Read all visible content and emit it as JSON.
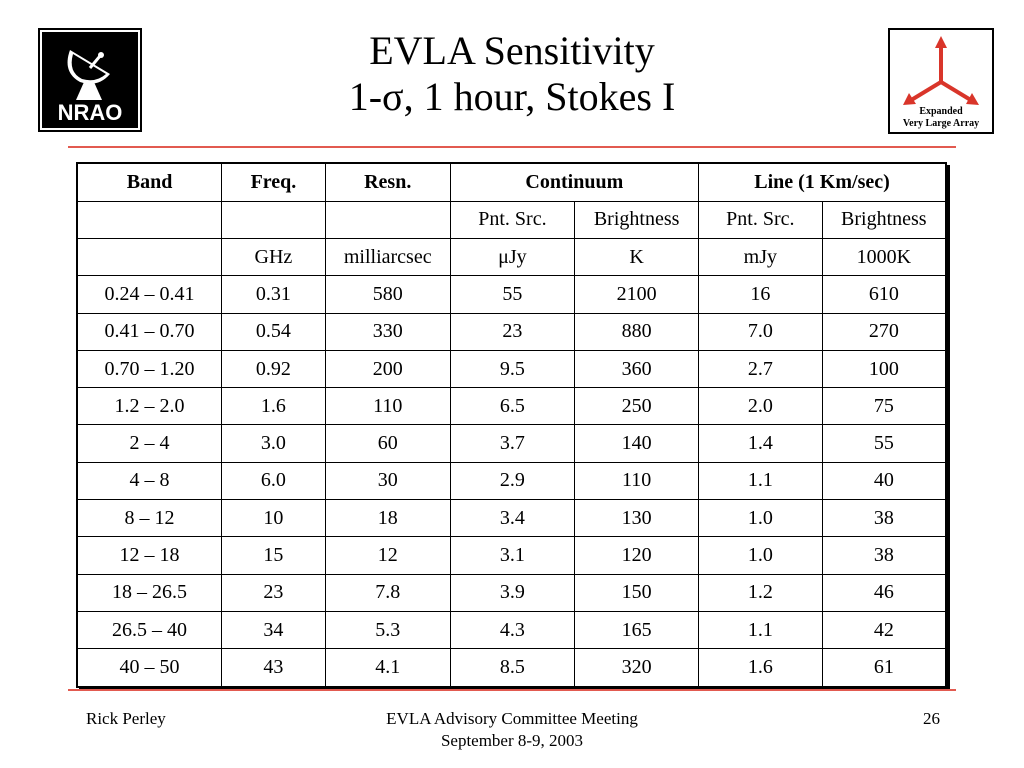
{
  "header": {
    "title_line1": "EVLA Sensitivity",
    "title_line2": "1-σ, 1 hour, Stokes I"
  },
  "logos": {
    "left": {
      "icon": "nrao-logo",
      "text": "NRAO"
    },
    "right": {
      "icon": "evla-logo",
      "line1": "Expanded",
      "line2": "Very Large Array"
    }
  },
  "table": {
    "header_row1": [
      "Band",
      "Freq.",
      "Resn.",
      "Continuum",
      "Line (1 Km/sec)"
    ],
    "header_row2": [
      "",
      "",
      "",
      "Pnt. Src.",
      "Brightness",
      "Pnt. Src.",
      "Brightness"
    ],
    "units_row": [
      "",
      "GHz",
      "milliarcsec",
      "μJy",
      "K",
      "mJy",
      "1000K"
    ],
    "rows": [
      [
        "0.24 – 0.41",
        "0.31",
        "580",
        "55",
        "2100",
        "16",
        "610"
      ],
      [
        "0.41 – 0.70",
        "0.54",
        "330",
        "23",
        "880",
        "7.0",
        "270"
      ],
      [
        "0.70 – 1.20",
        "0.92",
        "200",
        "9.5",
        "360",
        "2.7",
        "100"
      ],
      [
        "1.2 – 2.0",
        "1.6",
        "110",
        "6.5",
        "250",
        "2.0",
        "75"
      ],
      [
        "2 – 4",
        "3.0",
        "60",
        "3.7",
        "140",
        "1.4",
        "55"
      ],
      [
        "4 – 8",
        "6.0",
        "30",
        "2.9",
        "110",
        "1.1",
        "40"
      ],
      [
        "8 – 12",
        "10",
        "18",
        "3.4",
        "130",
        "1.0",
        "38"
      ],
      [
        "12 – 18",
        "15",
        "12",
        "3.1",
        "120",
        "1.0",
        "38"
      ],
      [
        "18 – 26.5",
        "23",
        "7.8",
        "3.9",
        "150",
        "1.2",
        "46"
      ],
      [
        "26.5 – 40",
        "34",
        "5.3",
        "4.3",
        "165",
        "1.1",
        "42"
      ],
      [
        "40 – 50",
        "43",
        "4.1",
        "8.5",
        "320",
        "1.6",
        "61"
      ]
    ]
  },
  "footer": {
    "author": "Rick Perley",
    "event_line1": "EVLA Advisory Committee Meeting",
    "event_line2": "September 8-9, 2003",
    "page_number": "26"
  },
  "colors": {
    "rule": "#e25a50",
    "evla_red": "#d9352a"
  }
}
